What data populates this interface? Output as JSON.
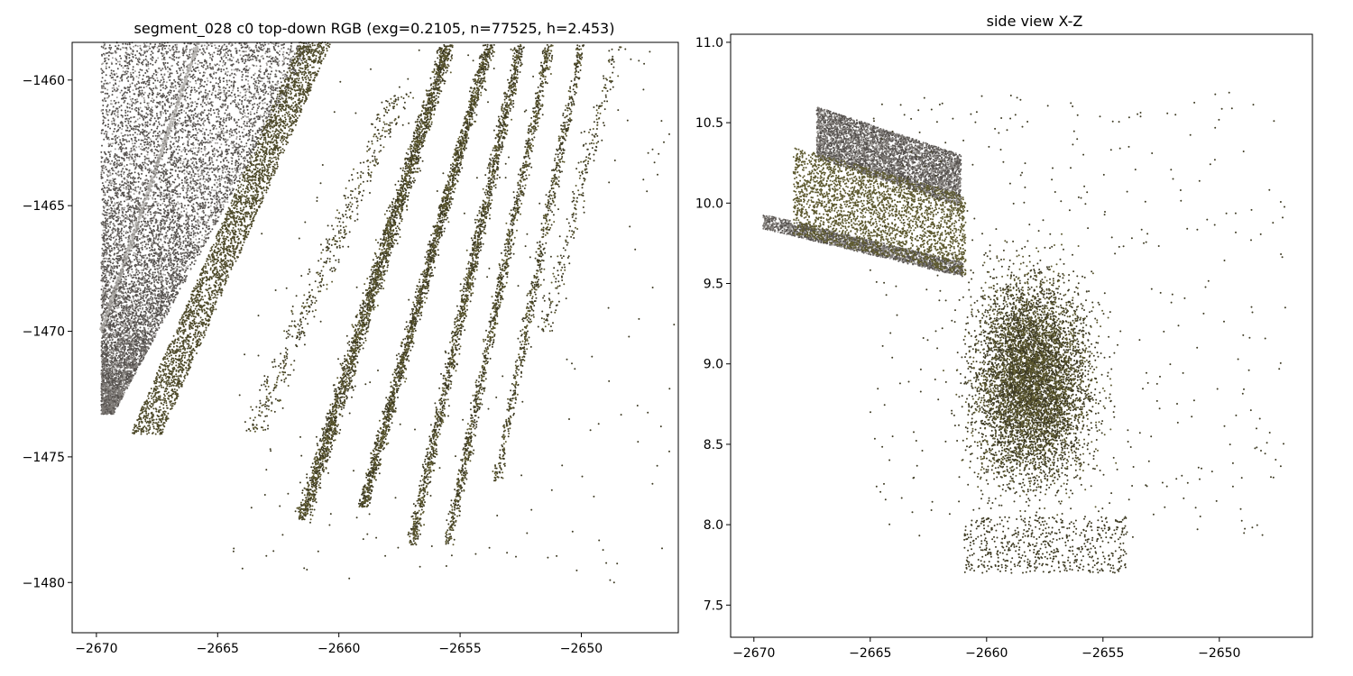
{
  "chart_data": [
    {
      "type": "scatter",
      "title": "segment_028 c0 top-down RGB (exg=0.2105, n=77525, h=2.453)",
      "xlabel": "",
      "ylabel": "",
      "xlim": [
        -2671,
        -2646
      ],
      "ylim": [
        -1482,
        -1458.5
      ],
      "xticks": [
        -2670,
        -2665,
        -2660,
        -2655,
        -2650
      ],
      "yticks": [
        -1460,
        -1465,
        -1470,
        -1475,
        -1480
      ],
      "xtick_labels": [
        "−2670",
        "−2665",
        "−2660",
        "−2655",
        "−2650"
      ],
      "ytick_labels": [
        "−1460",
        "−1465",
        "−1470",
        "−1475",
        "−1480"
      ],
      "grid": false,
      "colors": {
        "road": "#55514e",
        "road_light": "#8a8682",
        "vegetation": "#3d3a22",
        "vegetation_light": "#5e5a30"
      }
    },
    {
      "type": "scatter",
      "title": "side view X-Z",
      "xlabel": "",
      "ylabel": "",
      "xlim": [
        -2671,
        -2646
      ],
      "ylim": [
        7.3,
        11.05
      ],
      "xticks": [
        -2670,
        -2665,
        -2660,
        -2655,
        -2650
      ],
      "yticks": [
        11.0,
        10.5,
        10.0,
        9.5,
        9.0,
        8.5,
        8.0,
        7.5
      ],
      "xtick_labels": [
        "−2670",
        "−2665",
        "−2660",
        "−2655",
        "−2650"
      ],
      "ytick_labels": [
        "11.0",
        "10.5",
        "10.0",
        "9.5",
        "9.0",
        "8.5",
        "8.0",
        "7.5"
      ],
      "grid": false,
      "colors": {
        "road": "#55514e",
        "road_light": "#8a8682",
        "vegetation": "#3d3a22",
        "vegetation_light": "#5e5a30"
      }
    }
  ]
}
